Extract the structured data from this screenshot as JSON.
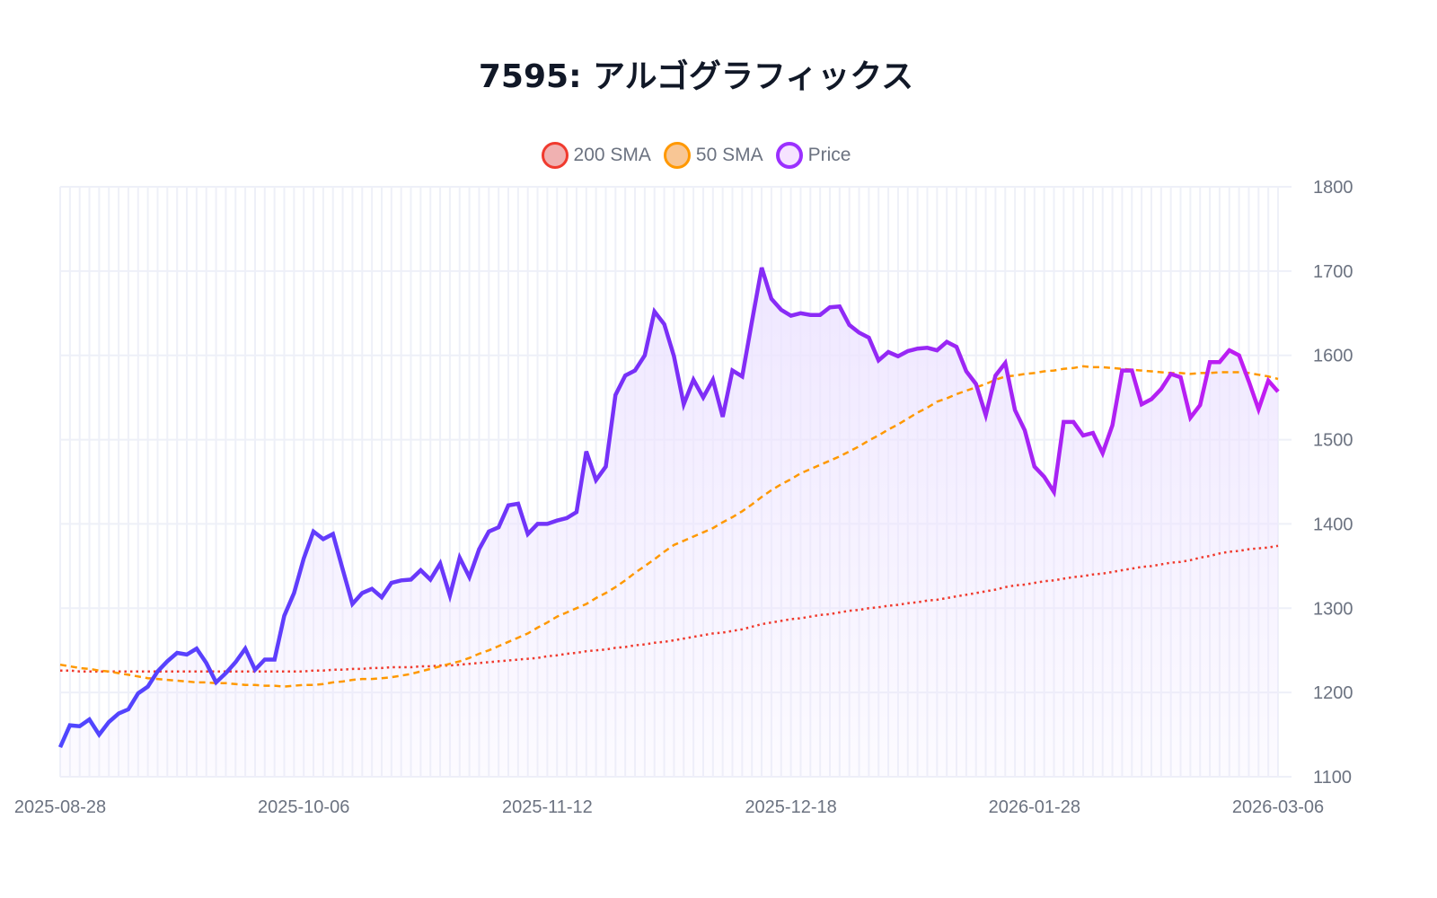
{
  "colors": {
    "price_start": "#4f46ff",
    "price_mid": "#7b2ff7",
    "price_end": "#c21cf2",
    "sma50": "#ff9800",
    "sma200": "#f03a2e",
    "grid": "#eef0f8",
    "fill": "#ede4ff"
  },
  "chart_data": {
    "type": "line",
    "title": "7595: アルゴグラフィックス",
    "legend": {
      "placement": "top-center",
      "entries": [
        {
          "name": "200 SMA",
          "color": "#f03a2e",
          "fill": "#f0b1b1",
          "style": "dotted"
        },
        {
          "name": "50 SMA",
          "color": "#ff9800",
          "fill": "#f8c695",
          "style": "dashed"
        },
        {
          "name": "Price",
          "color": "#9b30ff",
          "fill": "#f6e3ff",
          "style": "solid"
        }
      ]
    },
    "x_start": "2025-08-28",
    "x_end": "2026-03-06",
    "x_ticks": [
      "2025-08-28",
      "2025-10-06",
      "2025-11-12",
      "2025-12-18",
      "2026-01-28",
      "2026-03-06"
    ],
    "x_tick_every": 25,
    "ylim": [
      1100,
      1800
    ],
    "y_ticks": [
      1100,
      1200,
      1300,
      1400,
      1500,
      1600,
      1700,
      1800
    ],
    "y_axis_side": "right",
    "grid": true,
    "series": [
      {
        "name": "Price",
        "values": [
          1135,
          1161,
          1160,
          1168,
          1150,
          1165,
          1175,
          1180,
          1199,
          1207,
          1225,
          1237,
          1247,
          1245,
          1252,
          1235,
          1212,
          1223,
          1236,
          1252,
          1227,
          1239,
          1239,
          1291,
          1318,
          1359,
          1391,
          1382,
          1388,
          1346,
          1305,
          1318,
          1323,
          1313,
          1330,
          1333,
          1334,
          1345,
          1334,
          1353,
          1315,
          1360,
          1337,
          1370,
          1391,
          1396,
          1422,
          1424,
          1388,
          1400,
          1400,
          1404,
          1407,
          1414,
          1486,
          1452,
          1468,
          1553,
          1576,
          1582,
          1600,
          1652,
          1637,
          1599,
          1542,
          1571,
          1550,
          1571,
          1527,
          1582,
          1575,
          1640,
          1704,
          1667,
          1654,
          1647,
          1650,
          1648,
          1648,
          1657,
          1658,
          1636,
          1627,
          1621,
          1594,
          1604,
          1599,
          1605,
          1608,
          1609,
          1606,
          1616,
          1610,
          1581,
          1566,
          1529,
          1576,
          1591,
          1535,
          1511,
          1468,
          1456,
          1438,
          1521,
          1521,
          1505,
          1508,
          1484,
          1517,
          1582,
          1582,
          1542,
          1548,
          1560,
          1578,
          1574,
          1526,
          1541,
          1592,
          1592,
          1606,
          1600,
          1569,
          1536,
          1570,
          1557
        ]
      },
      {
        "name": "50 SMA",
        "values": [
          1233,
          1231,
          1229,
          1228,
          1226,
          1225,
          1223,
          1221,
          1219,
          1217,
          1216,
          1215,
          1214,
          1213,
          1212,
          1212,
          1211,
          1211,
          1210,
          1209,
          1209,
          1208,
          1208,
          1207,
          1208,
          1209,
          1209,
          1210,
          1212,
          1213,
          1215,
          1216,
          1216,
          1217,
          1218,
          1220,
          1222,
          1225,
          1228,
          1231,
          1234,
          1237,
          1241,
          1246,
          1250,
          1255,
          1260,
          1265,
          1270,
          1277,
          1283,
          1290,
          1295,
          1300,
          1305,
          1312,
          1318,
          1325,
          1333,
          1342,
          1350,
          1358,
          1367,
          1375,
          1380,
          1385,
          1390,
          1395,
          1402,
          1408,
          1415,
          1423,
          1432,
          1440,
          1447,
          1453,
          1460,
          1465,
          1470,
          1475,
          1480,
          1486,
          1492,
          1499,
          1505,
          1512,
          1518,
          1525,
          1532,
          1538,
          1545,
          1549,
          1554,
          1558,
          1562,
          1566,
          1571,
          1575,
          1576,
          1578,
          1579,
          1581,
          1582,
          1584,
          1585,
          1587,
          1586,
          1586,
          1585,
          1584,
          1583,
          1582,
          1581,
          1580,
          1579,
          1579,
          1578,
          1579,
          1579,
          1580,
          1580,
          1580,
          1579,
          1577,
          1575,
          1572
        ]
      },
      {
        "name": "200 SMA",
        "values": [
          1226,
          1226,
          1225,
          1225,
          1225,
          1225,
          1225,
          1225,
          1225,
          1225,
          1225,
          1225,
          1225,
          1225,
          1225,
          1225,
          1225,
          1225,
          1225,
          1225,
          1225,
          1225,
          1225,
          1225,
          1225,
          1225,
          1226,
          1226,
          1227,
          1227,
          1228,
          1228,
          1229,
          1229,
          1230,
          1230,
          1230,
          1231,
          1231,
          1232,
          1232,
          1233,
          1234,
          1235,
          1236,
          1237,
          1238,
          1239,
          1240,
          1241,
          1243,
          1244,
          1246,
          1247,
          1249,
          1250,
          1251,
          1253,
          1254,
          1256,
          1257,
          1259,
          1260,
          1262,
          1264,
          1266,
          1268,
          1270,
          1271,
          1273,
          1275,
          1278,
          1281,
          1283,
          1285,
          1287,
          1288,
          1290,
          1292,
          1293,
          1295,
          1297,
          1298,
          1300,
          1301,
          1303,
          1304,
          1306,
          1307,
          1309,
          1310,
          1312,
          1314,
          1316,
          1318,
          1320,
          1322,
          1325,
          1327,
          1328,
          1330,
          1332,
          1333,
          1335,
          1337,
          1338,
          1340,
          1341,
          1343,
          1345,
          1347,
          1349,
          1350,
          1352,
          1354,
          1355,
          1357,
          1360,
          1362,
          1365,
          1367,
          1368,
          1370,
          1371,
          1372,
          1374
        ]
      }
    ]
  }
}
